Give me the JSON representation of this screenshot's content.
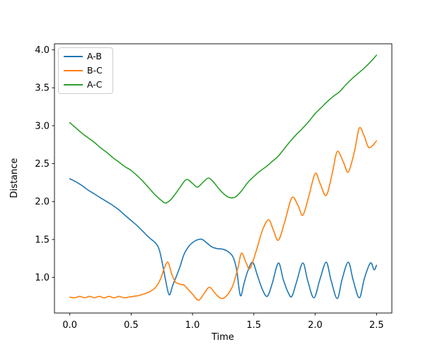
{
  "chart_data": {
    "type": "line",
    "title": "",
    "xlabel": "Time",
    "ylabel": "Distance",
    "xlim": [
      -0.125,
      2.625
    ],
    "ylim": [
      0.53,
      4.08
    ],
    "xticks": [
      0.0,
      0.5,
      1.0,
      1.5,
      2.0,
      2.5
    ],
    "yticks": [
      1.0,
      1.5,
      2.0,
      2.5,
      3.0,
      3.5,
      4.0
    ],
    "xtick_labels": [
      "0.0",
      "0.5",
      "1.0",
      "1.5",
      "2.0",
      "2.5"
    ],
    "ytick_labels": [
      "1.0",
      "1.5",
      "2.0",
      "2.5",
      "3.0",
      "3.5",
      "4.0"
    ],
    "grid": false,
    "legend_position": "upper left",
    "axis_color": "#000000",
    "background_color": "#ffffff",
    "series": [
      {
        "name": "A-B",
        "color": "#1f77b4",
        "points": [
          [
            0.0,
            2.3
          ],
          [
            0.05,
            2.26
          ],
          [
            0.1,
            2.21
          ],
          [
            0.15,
            2.15
          ],
          [
            0.2,
            2.1
          ],
          [
            0.25,
            2.05
          ],
          [
            0.3,
            2.0
          ],
          [
            0.35,
            1.95
          ],
          [
            0.4,
            1.89
          ],
          [
            0.45,
            1.82
          ],
          [
            0.5,
            1.75
          ],
          [
            0.55,
            1.68
          ],
          [
            0.6,
            1.6
          ],
          [
            0.65,
            1.52
          ],
          [
            0.7,
            1.45
          ],
          [
            0.73,
            1.36
          ],
          [
            0.76,
            1.14
          ],
          [
            0.78,
            0.97
          ],
          [
            0.81,
            0.77
          ],
          [
            0.84,
            0.9
          ],
          [
            0.87,
            1.02
          ],
          [
            0.9,
            1.15
          ],
          [
            0.93,
            1.3
          ],
          [
            0.97,
            1.41
          ],
          [
            1.01,
            1.47
          ],
          [
            1.05,
            1.5
          ],
          [
            1.08,
            1.5
          ],
          [
            1.12,
            1.45
          ],
          [
            1.16,
            1.4
          ],
          [
            1.2,
            1.38
          ],
          [
            1.25,
            1.37
          ],
          [
            1.29,
            1.34
          ],
          [
            1.33,
            1.27
          ],
          [
            1.36,
            1.1
          ],
          [
            1.39,
            0.76
          ],
          [
            1.42,
            0.92
          ],
          [
            1.45,
            1.08
          ],
          [
            1.49,
            1.2
          ],
          [
            1.53,
            1.02
          ],
          [
            1.57,
            0.84
          ],
          [
            1.61,
            0.75
          ],
          [
            1.65,
            0.92
          ],
          [
            1.7,
            1.19
          ],
          [
            1.74,
            0.97
          ],
          [
            1.78,
            0.8
          ],
          [
            1.81,
            0.75
          ],
          [
            1.85,
            0.95
          ],
          [
            1.9,
            1.19
          ],
          [
            1.94,
            0.95
          ],
          [
            1.99,
            0.73
          ],
          [
            2.04,
            0.98
          ],
          [
            2.09,
            1.2
          ],
          [
            2.13,
            0.96
          ],
          [
            2.18,
            0.72
          ],
          [
            2.22,
            0.98
          ],
          [
            2.27,
            1.2
          ],
          [
            2.31,
            0.96
          ],
          [
            2.36,
            0.73
          ],
          [
            2.4,
            0.98
          ],
          [
            2.45,
            1.19
          ],
          [
            2.48,
            1.1
          ],
          [
            2.5,
            1.16
          ]
        ]
      },
      {
        "name": "B-C",
        "color": "#ff7f0e",
        "points": [
          [
            0.0,
            0.74
          ],
          [
            0.04,
            0.73
          ],
          [
            0.08,
            0.75
          ],
          [
            0.12,
            0.73
          ],
          [
            0.16,
            0.75
          ],
          [
            0.2,
            0.73
          ],
          [
            0.24,
            0.75
          ],
          [
            0.28,
            0.73
          ],
          [
            0.32,
            0.75
          ],
          [
            0.36,
            0.73
          ],
          [
            0.4,
            0.75
          ],
          [
            0.44,
            0.73
          ],
          [
            0.48,
            0.74
          ],
          [
            0.52,
            0.75
          ],
          [
            0.56,
            0.76
          ],
          [
            0.6,
            0.78
          ],
          [
            0.65,
            0.81
          ],
          [
            0.7,
            0.87
          ],
          [
            0.74,
            0.98
          ],
          [
            0.77,
            1.12
          ],
          [
            0.8,
            1.2
          ],
          [
            0.83,
            1.05
          ],
          [
            0.86,
            0.94
          ],
          [
            0.9,
            0.91
          ],
          [
            0.93,
            0.9
          ],
          [
            0.96,
            0.85
          ],
          [
            1.0,
            0.78
          ],
          [
            1.05,
            0.7
          ],
          [
            1.1,
            0.8
          ],
          [
            1.14,
            0.87
          ],
          [
            1.19,
            0.78
          ],
          [
            1.24,
            0.72
          ],
          [
            1.29,
            0.78
          ],
          [
            1.33,
            0.9
          ],
          [
            1.37,
            1.12
          ],
          [
            1.4,
            1.32
          ],
          [
            1.44,
            1.18
          ],
          [
            1.47,
            1.12
          ],
          [
            1.52,
            1.35
          ],
          [
            1.57,
            1.62
          ],
          [
            1.62,
            1.76
          ],
          [
            1.66,
            1.62
          ],
          [
            1.7,
            1.49
          ],
          [
            1.75,
            1.72
          ],
          [
            1.81,
            2.05
          ],
          [
            1.86,
            1.95
          ],
          [
            1.9,
            1.82
          ],
          [
            1.95,
            2.08
          ],
          [
            2.0,
            2.37
          ],
          [
            2.04,
            2.24
          ],
          [
            2.09,
            2.08
          ],
          [
            2.14,
            2.38
          ],
          [
            2.18,
            2.66
          ],
          [
            2.23,
            2.52
          ],
          [
            2.27,
            2.39
          ],
          [
            2.32,
            2.66
          ],
          [
            2.36,
            2.97
          ],
          [
            2.4,
            2.86
          ],
          [
            2.44,
            2.71
          ],
          [
            2.5,
            2.8
          ]
        ]
      },
      {
        "name": "A-C",
        "color": "#2ca02c",
        "points": [
          [
            0.0,
            3.04
          ],
          [
            0.05,
            2.97
          ],
          [
            0.1,
            2.9
          ],
          [
            0.15,
            2.84
          ],
          [
            0.2,
            2.78
          ],
          [
            0.25,
            2.71
          ],
          [
            0.3,
            2.65
          ],
          [
            0.35,
            2.58
          ],
          [
            0.4,
            2.52
          ],
          [
            0.45,
            2.46
          ],
          [
            0.5,
            2.41
          ],
          [
            0.55,
            2.34
          ],
          [
            0.6,
            2.26
          ],
          [
            0.65,
            2.17
          ],
          [
            0.7,
            2.08
          ],
          [
            0.75,
            2.01
          ],
          [
            0.78,
            1.98
          ],
          [
            0.82,
            2.02
          ],
          [
            0.86,
            2.1
          ],
          [
            0.9,
            2.19
          ],
          [
            0.95,
            2.29
          ],
          [
            1.0,
            2.24
          ],
          [
            1.04,
            2.19
          ],
          [
            1.09,
            2.26
          ],
          [
            1.13,
            2.31
          ],
          [
            1.17,
            2.26
          ],
          [
            1.22,
            2.16
          ],
          [
            1.27,
            2.08
          ],
          [
            1.31,
            2.05
          ],
          [
            1.35,
            2.06
          ],
          [
            1.4,
            2.14
          ],
          [
            1.45,
            2.25
          ],
          [
            1.5,
            2.33
          ],
          [
            1.55,
            2.4
          ],
          [
            1.6,
            2.46
          ],
          [
            1.65,
            2.53
          ],
          [
            1.7,
            2.6
          ],
          [
            1.75,
            2.7
          ],
          [
            1.8,
            2.8
          ],
          [
            1.85,
            2.89
          ],
          [
            1.9,
            2.97
          ],
          [
            1.95,
            3.06
          ],
          [
            2.0,
            3.16
          ],
          [
            2.05,
            3.24
          ],
          [
            2.1,
            3.32
          ],
          [
            2.15,
            3.39
          ],
          [
            2.2,
            3.45
          ],
          [
            2.25,
            3.54
          ],
          [
            2.3,
            3.62
          ],
          [
            2.35,
            3.69
          ],
          [
            2.4,
            3.76
          ],
          [
            2.45,
            3.84
          ],
          [
            2.5,
            3.93
          ]
        ]
      }
    ]
  }
}
